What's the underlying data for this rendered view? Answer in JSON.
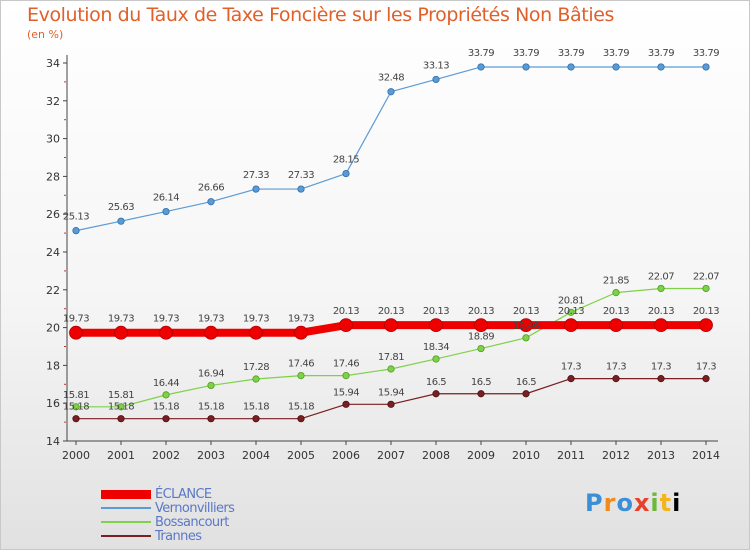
{
  "chart_data": {
    "type": "line",
    "title": "Evolution du Taux de Taxe Foncière sur les Propriétés Non Bâties",
    "subtitle": "(en %)",
    "x": [
      2000,
      2001,
      2002,
      2003,
      2004,
      2005,
      2006,
      2007,
      2008,
      2009,
      2010,
      2011,
      2012,
      2013,
      2014
    ],
    "xlabel": "",
    "ylabel": "",
    "ylim": [
      14,
      34
    ],
    "yticks": [
      14,
      16,
      18,
      20,
      22,
      24,
      26,
      28,
      30,
      32,
      34
    ],
    "grid": false,
    "legend_position": "bottom-left",
    "series": [
      {
        "name": "ÉCLANCE",
        "color": "#ee0000",
        "values": [
          19.73,
          19.73,
          19.73,
          19.73,
          19.73,
          19.73,
          20.13,
          20.13,
          20.13,
          20.13,
          20.13,
          20.13,
          20.13,
          20.13,
          20.13
        ]
      },
      {
        "name": "Vernonvilliers",
        "color": "#5b9bd5",
        "values": [
          25.13,
          25.63,
          26.14,
          26.66,
          27.33,
          27.33,
          28.15,
          32.48,
          33.13,
          33.79,
          33.79,
          33.79,
          33.79,
          33.79,
          33.79
        ]
      },
      {
        "name": "Bossancourt",
        "color": "#7ed148",
        "values": [
          15.81,
          15.81,
          16.44,
          16.94,
          17.28,
          17.46,
          17.46,
          17.81,
          18.34,
          18.89,
          19.46,
          20.81,
          21.85,
          22.07,
          22.07
        ]
      },
      {
        "name": "Trannes",
        "color": "#7a1f22",
        "values": [
          15.18,
          15.18,
          15.18,
          15.18,
          15.18,
          15.18,
          15.94,
          15.94,
          16.5,
          16.5,
          16.5,
          17.3,
          17.3,
          17.3,
          17.3
        ]
      }
    ]
  },
  "logo": {
    "letters": [
      "P",
      "r",
      "o",
      "x",
      "i",
      "t",
      "i"
    ]
  }
}
